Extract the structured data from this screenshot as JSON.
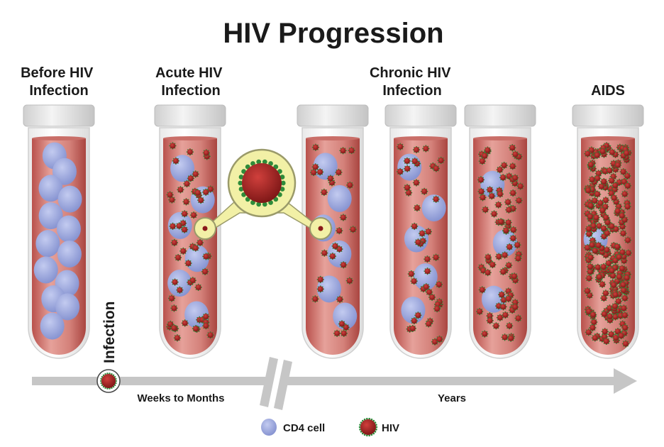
{
  "title": "HIV Progression",
  "stage_labels": {
    "before": [
      "Before HIV",
      "Infection"
    ],
    "acute": [
      "Acute HIV",
      "Infection"
    ],
    "chronic": [
      "Chronic HIV",
      "Infection"
    ],
    "aids": [
      "AIDS"
    ]
  },
  "tubes": [
    {
      "stage": "before",
      "cd4_count": 13,
      "hiv_count": 0
    },
    {
      "stage": "acute",
      "cd4_count": 6,
      "hiv_count": 60
    },
    {
      "stage": "chronic",
      "cd4_count": 6,
      "hiv_count": 30
    },
    {
      "stage": "chronic",
      "cd4_count": 5,
      "hiv_count": 45
    },
    {
      "stage": "chronic",
      "cd4_count": 3,
      "hiv_count": 85
    },
    {
      "stage": "aids",
      "cd4_count": 1,
      "hiv_count": 260
    }
  ],
  "timeline": {
    "event_label": "Infection",
    "segment_1": "Weeks to Months",
    "segment_2": "Years"
  },
  "legend": [
    {
      "icon": "cd4-cell-icon",
      "label": "CD4 cell"
    },
    {
      "icon": "hiv-virus-icon",
      "label": "HIV"
    }
  ],
  "colors": {
    "cd4": "#9aa6dc",
    "hiv": "#a0201f",
    "blood": "#d98880",
    "magnifier": "#f2f0a6",
    "timeline": "#c6c6c6"
  }
}
